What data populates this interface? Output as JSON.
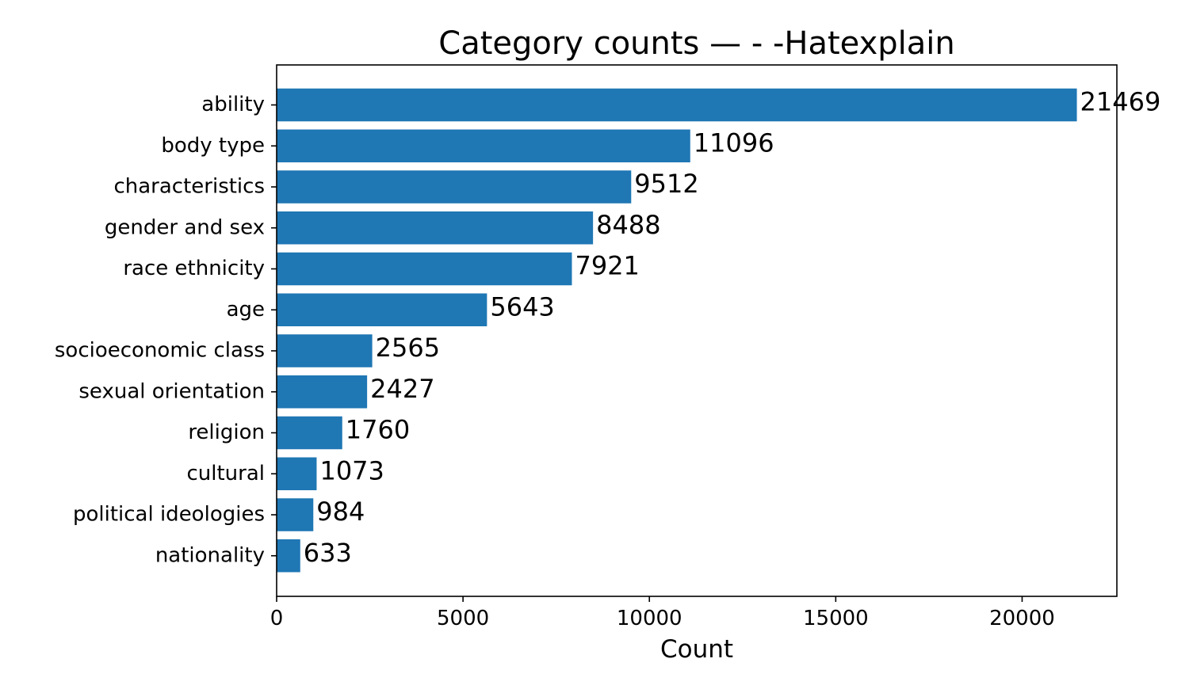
{
  "chart_data": {
    "type": "bar",
    "orientation": "horizontal",
    "title": "Category counts —  - -Hatexplain",
    "xlabel": "Count",
    "ylabel": "",
    "categories": [
      "ability",
      "body type",
      "characteristics",
      "gender and sex",
      "race ethnicity",
      "age",
      "socioeconomic class",
      "sexual orientation",
      "religion",
      "cultural",
      "political ideologies",
      "nationality"
    ],
    "values": [
      21469,
      11096,
      9512,
      8488,
      7921,
      5643,
      2565,
      2427,
      1760,
      1073,
      984,
      633
    ],
    "xlim": [
      0,
      22542
    ],
    "xticks": [
      0,
      5000,
      10000,
      15000,
      20000
    ],
    "grid": false,
    "legend": "none",
    "bar_color": "#1f77b4",
    "data_labels": true
  }
}
